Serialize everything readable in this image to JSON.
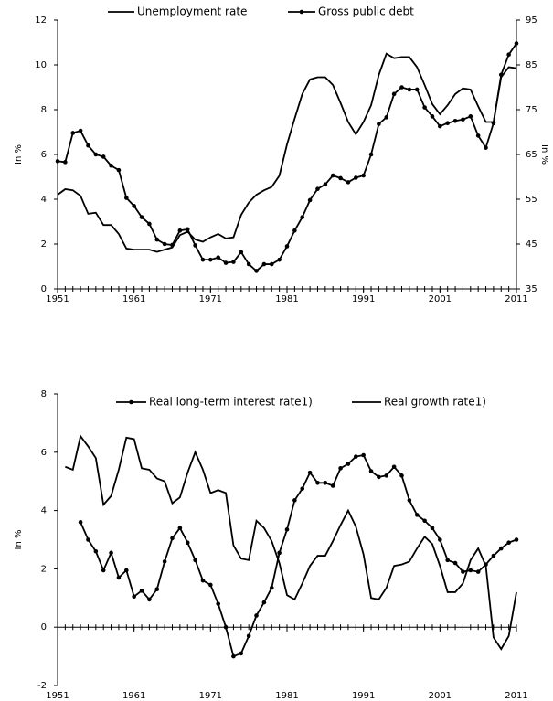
{
  "chart_data": [
    {
      "type": "line",
      "ylabel": "In %",
      "y2label": "In %",
      "x": [
        1951,
        1952,
        1953,
        1954,
        1955,
        1956,
        1957,
        1958,
        1959,
        1960,
        1961,
        1962,
        1963,
        1964,
        1965,
        1966,
        1967,
        1968,
        1969,
        1970,
        1971,
        1972,
        1973,
        1974,
        1975,
        1976,
        1977,
        1978,
        1979,
        1980,
        1981,
        1982,
        1983,
        1984,
        1985,
        1986,
        1987,
        1988,
        1989,
        1990,
        1991,
        1992,
        1993,
        1994,
        1995,
        1996,
        1997,
        1998,
        1999,
        2000,
        2001,
        2002,
        2003,
        2004,
        2005,
        2006,
        2007,
        2008,
        2009,
        2010,
        2011
      ],
      "xlim": [
        1951,
        2011
      ],
      "xticks": [
        1951,
        1961,
        1971,
        1981,
        1991,
        2001,
        2011
      ],
      "ylim": [
        0,
        12
      ],
      "yticks": [
        0,
        2,
        4,
        6,
        8,
        10,
        12
      ],
      "y2lim": [
        35,
        95
      ],
      "y2ticks": [
        35,
        45,
        55,
        65,
        75,
        85,
        95
      ],
      "series": [
        {
          "name": "Unemployment rate",
          "color": "#000000",
          "marker": false,
          "values": [
            4.2,
            4.45,
            4.4,
            4.15,
            3.35,
            3.4,
            2.85,
            2.85,
            2.45,
            1.8,
            1.75,
            1.75,
            1.75,
            1.65,
            1.75,
            1.85,
            2.4,
            2.55,
            2.2,
            2.1,
            2.3,
            2.45,
            2.25,
            2.3,
            3.3,
            3.85,
            4.2,
            4.4,
            4.55,
            5.05,
            6.45,
            7.6,
            8.7,
            9.35,
            9.45,
            9.45,
            9.1,
            8.3,
            7.45,
            6.9,
            7.45,
            8.2,
            9.55,
            10.5,
            10.3,
            10.35,
            10.35,
            9.9,
            9.1,
            8.25,
            7.8,
            8.2,
            8.7,
            8.95,
            8.9,
            8.15,
            7.45,
            7.45,
            9.45,
            9.9,
            9.85
          ]
        },
        {
          "name": "Gross public debt",
          "color": "#000000",
          "marker": true,
          "axis": "y2",
          "values": [
            63.5,
            63.3,
            69.8,
            70.3,
            67,
            65,
            64.5,
            62.5,
            61.5,
            55.3,
            53.5,
            51,
            49.5,
            46,
            45,
            44.8,
            48,
            48.3,
            44.7,
            41.5,
            41.5,
            42,
            40.8,
            41,
            43.2,
            40.5,
            39,
            40.5,
            40.5,
            41.5,
            44.5,
            48,
            51,
            54.8,
            57.3,
            58.3,
            60.3,
            59.7,
            58.8,
            59.8,
            60.3,
            65,
            71.8,
            73.3,
            78.5,
            80,
            79.5,
            79.5,
            75.5,
            73.5,
            71.3,
            72,
            72.5,
            72.8,
            73.5,
            69.2,
            66.5,
            72,
            82.8,
            87.3,
            89.8
          ]
        }
      ]
    },
    {
      "type": "line",
      "ylabel": "In %",
      "x": [
        1951,
        1952,
        1953,
        1954,
        1955,
        1956,
        1957,
        1958,
        1959,
        1960,
        1961,
        1962,
        1963,
        1964,
        1965,
        1966,
        1967,
        1968,
        1969,
        1970,
        1971,
        1972,
        1973,
        1974,
        1975,
        1976,
        1977,
        1978,
        1979,
        1980,
        1981,
        1982,
        1983,
        1984,
        1985,
        1986,
        1987,
        1988,
        1989,
        1990,
        1991,
        1992,
        1993,
        1994,
        1995,
        1996,
        1997,
        1998,
        1999,
        2000,
        2001,
        2002,
        2003,
        2004,
        2005,
        2006,
        2007,
        2008,
        2009,
        2010,
        2011
      ],
      "xlim": [
        1951,
        2011
      ],
      "xticks": [
        1951,
        1961,
        1971,
        1981,
        1991,
        2001,
        2011
      ],
      "ylim": [
        -2,
        8
      ],
      "yticks": [
        -2,
        0,
        2,
        4,
        6,
        8
      ],
      "series": [
        {
          "name": "Real long-term interest rate1)",
          "color": "#000000",
          "marker": true,
          "values": [
            null,
            null,
            null,
            3.6,
            3.0,
            2.6,
            1.95,
            2.55,
            1.7,
            1.95,
            1.05,
            1.25,
            0.95,
            1.3,
            2.25,
            3.05,
            3.4,
            2.9,
            2.3,
            1.6,
            1.45,
            0.8,
            0.0,
            -1.0,
            -0.9,
            -0.3,
            0.4,
            0.85,
            1.35,
            2.55,
            3.35,
            4.35,
            4.75,
            5.3,
            4.95,
            4.95,
            4.85,
            5.45,
            5.6,
            5.85,
            5.9,
            5.35,
            5.15,
            5.2,
            5.5,
            5.2,
            4.35,
            3.85,
            3.65,
            3.4,
            3.0,
            2.3,
            2.2,
            1.9,
            1.95,
            1.9,
            2.15,
            2.45,
            2.7,
            2.9,
            3.0
          ]
        },
        {
          "name": "Real growth rate1)",
          "color": "#000000",
          "marker": false,
          "values": [
            null,
            5.5,
            5.4,
            6.55,
            6.2,
            5.8,
            4.2,
            4.5,
            5.4,
            6.5,
            6.45,
            5.45,
            5.4,
            5.1,
            5.0,
            4.25,
            4.45,
            5.3,
            6.0,
            5.4,
            4.6,
            4.7,
            4.6,
            2.8,
            2.35,
            2.3,
            3.65,
            3.4,
            2.95,
            2.2,
            1.1,
            0.95,
            1.5,
            2.1,
            2.45,
            2.45,
            2.95,
            3.5,
            4.0,
            3.45,
            2.5,
            1.0,
            0.95,
            1.35,
            2.1,
            2.15,
            2.25,
            2.7,
            3.1,
            2.85,
            2.1,
            1.2,
            1.2,
            1.5,
            2.3,
            2.7,
            2.1,
            -0.35,
            -0.75,
            -0.3,
            1.2
          ]
        }
      ]
    }
  ]
}
